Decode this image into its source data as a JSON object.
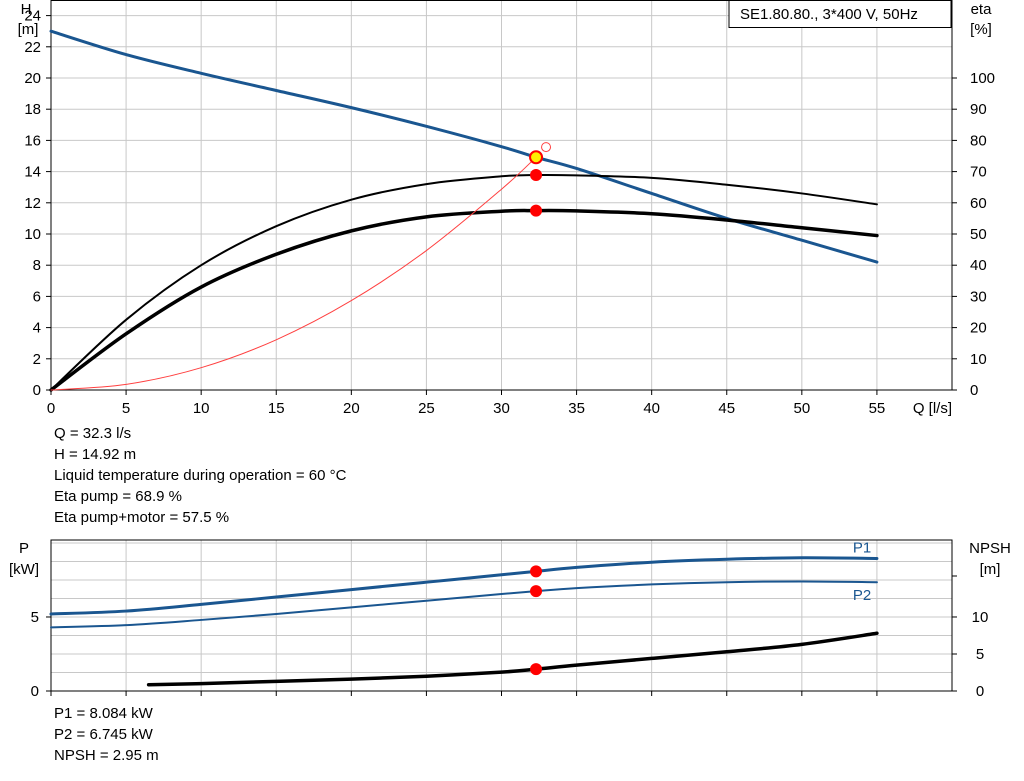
{
  "title_box": "SE1.80.80., 3*400 V, 50Hz",
  "info_top": [
    "Q = 32.3 l/s",
    "H = 14.92 m",
    "Liquid temperature during operation = 60 °C",
    "Eta pump = 68.9 %",
    "Eta pump+motor = 57.5 %"
  ],
  "info_bottom": [
    "P1 = 8.084 kW",
    "P2 = 6.745 kW",
    "NPSH = 2.95 m"
  ],
  "colors": {
    "head": "#1a5690",
    "eta": "#000000",
    "system": "#ff4040",
    "point": "#ff0000",
    "power": "#1a5690",
    "npsh": "#000000",
    "grid": "#c8c8c8"
  },
  "chart_data": [
    {
      "type": "line",
      "name": "head-efficiency",
      "left_axis": {
        "label_line1": "H",
        "label_line2": "[m]",
        "ticks": [
          "0",
          "2",
          "4",
          "6",
          "8",
          "10",
          "12",
          "14",
          "16",
          "18",
          "20",
          "22",
          "24"
        ],
        "range": [
          0,
          25
        ]
      },
      "right_axis": {
        "label_line1": "eta",
        "label_line2": "[%]",
        "ticks": [
          "0",
          "10",
          "20",
          "30",
          "40",
          "50",
          "60",
          "70",
          "80",
          "90",
          "100"
        ],
        "range": [
          0,
          125
        ]
      },
      "x_axis": {
        "label": "Q [l/s]",
        "ticks": [
          "0",
          "5",
          "10",
          "15",
          "20",
          "25",
          "30",
          "35",
          "40",
          "45",
          "50",
          "55"
        ],
        "range": [
          0,
          60
        ]
      },
      "grid": true,
      "series": [
        {
          "key": "head",
          "axis": "left",
          "width": 3,
          "x": [
            0,
            5,
            10,
            15,
            20,
            25,
            30,
            32.3,
            35,
            40,
            45,
            50,
            55
          ],
          "y": [
            23.0,
            21.5,
            20.3,
            19.2,
            18.1,
            16.9,
            15.6,
            14.92,
            14.2,
            12.6,
            11.0,
            9.6,
            8.2
          ]
        },
        {
          "key": "eta_pump",
          "axis": "right",
          "width": 2,
          "x": [
            0,
            5,
            10,
            15,
            20,
            25,
            30,
            32.3,
            35,
            40,
            45,
            50,
            55
          ],
          "y": [
            0,
            22.5,
            40.0,
            52.5,
            61.0,
            66.0,
            68.5,
            68.9,
            68.8,
            68.0,
            65.8,
            63.0,
            59.5
          ]
        },
        {
          "key": "eta_total",
          "axis": "right",
          "width": 3.5,
          "x": [
            0,
            5,
            10,
            15,
            20,
            25,
            30,
            32.3,
            35,
            40,
            45,
            50,
            55
          ],
          "y": [
            0,
            18.0,
            33.0,
            43.5,
            51.0,
            55.5,
            57.3,
            57.5,
            57.4,
            56.5,
            54.5,
            52.0,
            49.5
          ]
        },
        {
          "key": "system",
          "axis": "left",
          "width": 1,
          "x": [
            0,
            5,
            10,
            15,
            20,
            25,
            30,
            32.3
          ],
          "y": [
            0,
            0.36,
            1.43,
            3.22,
            5.73,
            8.94,
            12.87,
            14.92
          ]
        }
      ],
      "duty_point": {
        "x": 32.3,
        "head": 14.92,
        "eta_pump": 68.9,
        "eta_total": 57.5
      }
    },
    {
      "type": "line",
      "name": "power-npsh",
      "left_axis": {
        "label_line1": "P",
        "label_line2": "[kW]",
        "ticks": [
          "0",
          "5"
        ],
        "range": [
          0,
          10.2
        ]
      },
      "right_axis": {
        "label_line1": "NPSH",
        "label_line2": "[m]",
        "ticks": [
          "0",
          "5",
          "10"
        ],
        "range": [
          0,
          20.4
        ]
      },
      "x_axis": {
        "range": [
          0,
          60
        ]
      },
      "grid": true,
      "series": [
        {
          "key": "P1",
          "name": "P1",
          "axis": "left",
          "width": 3,
          "x": [
            0,
            5,
            10,
            15,
            20,
            25,
            30,
            32.3,
            35,
            40,
            45,
            50,
            55
          ],
          "y": [
            5.2,
            5.4,
            5.85,
            6.35,
            6.85,
            7.35,
            7.85,
            8.084,
            8.35,
            8.7,
            8.9,
            9.0,
            8.95
          ]
        },
        {
          "key": "P2",
          "name": "P2",
          "axis": "left",
          "width": 2,
          "x": [
            0,
            5,
            10,
            15,
            20,
            25,
            30,
            32.3,
            35,
            40,
            45,
            50,
            55
          ],
          "y": [
            4.3,
            4.45,
            4.8,
            5.2,
            5.65,
            6.1,
            6.55,
            6.745,
            6.95,
            7.2,
            7.35,
            7.4,
            7.35
          ]
        },
        {
          "key": "NPSH",
          "axis": "right",
          "width": 3.5,
          "x": [
            6.5,
            10,
            15,
            20,
            25,
            30,
            32.3,
            35,
            40,
            45,
            50,
            55
          ],
          "y": [
            0.85,
            1.0,
            1.3,
            1.6,
            2.0,
            2.55,
            2.95,
            3.5,
            4.4,
            5.3,
            6.3,
            7.8
          ]
        }
      ],
      "duty_point": {
        "x": 32.3,
        "P1": 8.084,
        "P2": 6.745,
        "NPSH": 2.95
      }
    }
  ]
}
